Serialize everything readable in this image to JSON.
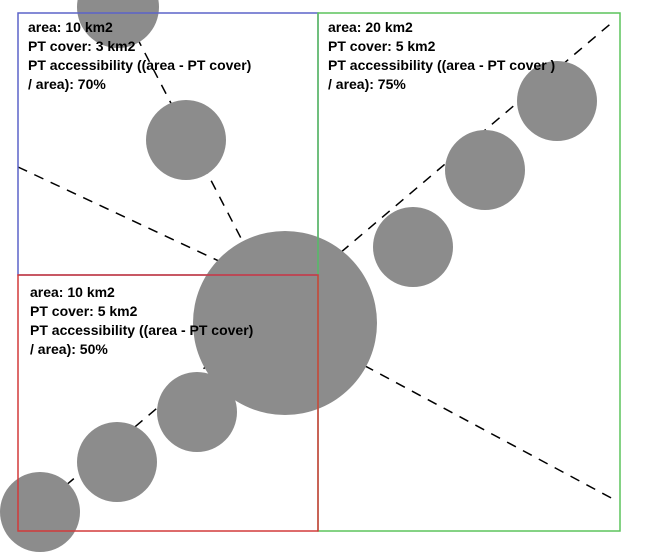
{
  "colors": {
    "circle_fill": "#8c8c8c",
    "blue_region": "#5b63c9",
    "green_region": "#5cc45c",
    "red_region": "#d23a3a",
    "dashed_line": "#000000"
  },
  "regions": {
    "blue": {
      "area": "area: 10 km2",
      "pt_cover": "PT cover: 3 km2",
      "accessibility_line1": "PT accessibility ((area - PT cover)",
      "accessibility_line2": "/ area): 70%"
    },
    "green": {
      "area": "area: 20 km2",
      "pt_cover": "PT cover: 5 km2",
      "accessibility_line1": "PT accessibility ((area - PT cover )",
      "accessibility_line2": "/ area): 75%"
    },
    "red": {
      "area": "area: 10 km2",
      "pt_cover": "PT cover: 5 km2",
      "accessibility_line1": "PT accessibility ((area - PT cover)",
      "accessibility_line2": "/ area): 50%"
    }
  }
}
